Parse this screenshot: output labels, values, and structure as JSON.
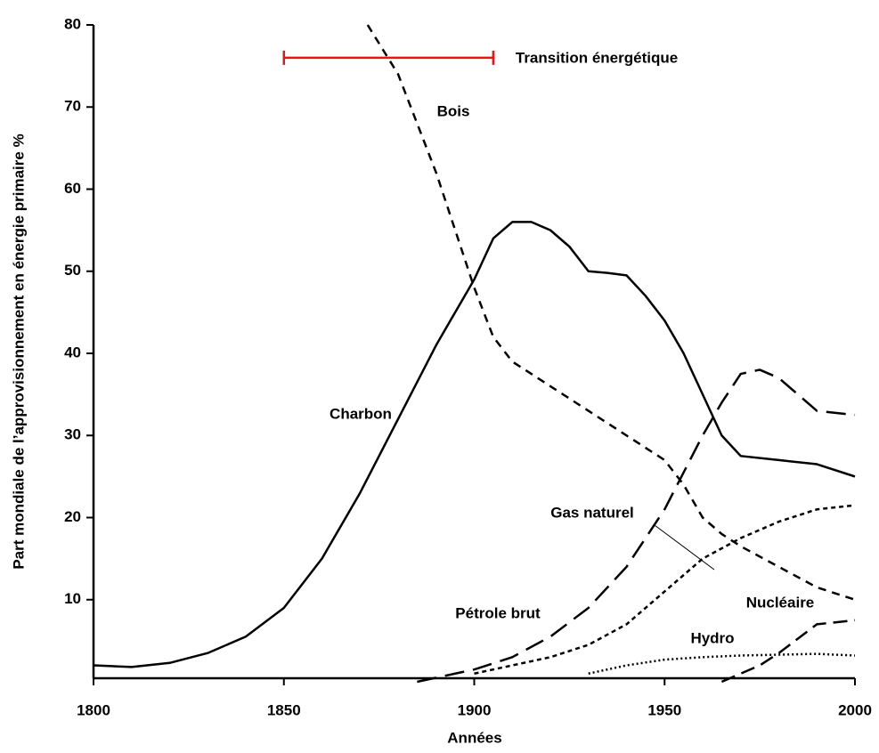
{
  "chart_data": {
    "type": "line",
    "xlabel": "Années",
    "ylabel": "Part mondiale de l’approvisionnement en énergie primaire %",
    "xlim": [
      1800,
      2000
    ],
    "xticks": [
      1800,
      1850,
      1900,
      1950,
      2000
    ],
    "ylim": [
      0,
      80
    ],
    "yticks": [
      10,
      20,
      30,
      40,
      50,
      60,
      70,
      80
    ],
    "transition": {
      "label": "Transition énergétique",
      "x": [
        1850,
        1905
      ],
      "y": 76,
      "color": "#e8141b"
    },
    "series": [
      {
        "name": "Charbon",
        "color": "#000000",
        "dash": "none",
        "x": [
          1800,
          1810,
          1820,
          1830,
          1840,
          1850,
          1860,
          1870,
          1880,
          1890,
          1900,
          1905,
          1910,
          1915,
          1920,
          1925,
          1930,
          1935,
          1940,
          1945,
          1950,
          1955,
          1960,
          1965,
          1970,
          1980,
          1990,
          2000
        ],
        "values": [
          2,
          1.8,
          2.3,
          3.5,
          5.5,
          9,
          15,
          23,
          32,
          41,
          49,
          54,
          56,
          56,
          55,
          53,
          50,
          49.8,
          49.5,
          47,
          44,
          40,
          35,
          30,
          27.5,
          27,
          26.5,
          25
        ]
      },
      {
        "name": "Bois",
        "color": "#000000",
        "dash": "9,7",
        "x": [
          1872,
          1880,
          1890,
          1900,
          1905,
          1910,
          1920,
          1930,
          1940,
          1950,
          1955,
          1960,
          1965,
          1970,
          1980,
          1990,
          2000
        ],
        "values": [
          80,
          74,
          62,
          48,
          42,
          39,
          36,
          33,
          30,
          27,
          24,
          20,
          18,
          16.5,
          14,
          11.5,
          10
        ]
      },
      {
        "name": "Pétrole brut",
        "color": "#000000",
        "dash": "22,10",
        "x": [
          1885,
          1890,
          1900,
          1910,
          1920,
          1930,
          1940,
          1950,
          1960,
          1965,
          1970,
          1975,
          1980,
          1990,
          2000
        ],
        "values": [
          0,
          0.5,
          1.5,
          3,
          5.5,
          9,
          14,
          21,
          30,
          34,
          37.5,
          38,
          37,
          33,
          32.5
        ]
      },
      {
        "name": "Gas naturel",
        "color": "#000000",
        "dash": "5,4",
        "x": [
          1900,
          1910,
          1920,
          1930,
          1940,
          1950,
          1960,
          1970,
          1980,
          1990,
          2000
        ],
        "values": [
          1,
          2,
          3,
          4.5,
          7,
          11,
          15,
          17.5,
          19.5,
          21,
          21.5
        ]
      },
      {
        "name": "Hydro",
        "color": "#000000",
        "dash": "2,3",
        "x": [
          1930,
          1940,
          1950,
          1960,
          1970,
          1980,
          1990,
          2000
        ],
        "values": [
          1,
          2,
          2.7,
          3,
          3.2,
          3.3,
          3.4,
          3.2
        ]
      },
      {
        "name": "Nucléaire",
        "color": "#000000",
        "dash": "16,8",
        "x": [
          1965,
          1975,
          1980,
          1990,
          2000
        ],
        "values": [
          0,
          2,
          3.5,
          7,
          7.5
        ]
      }
    ]
  }
}
